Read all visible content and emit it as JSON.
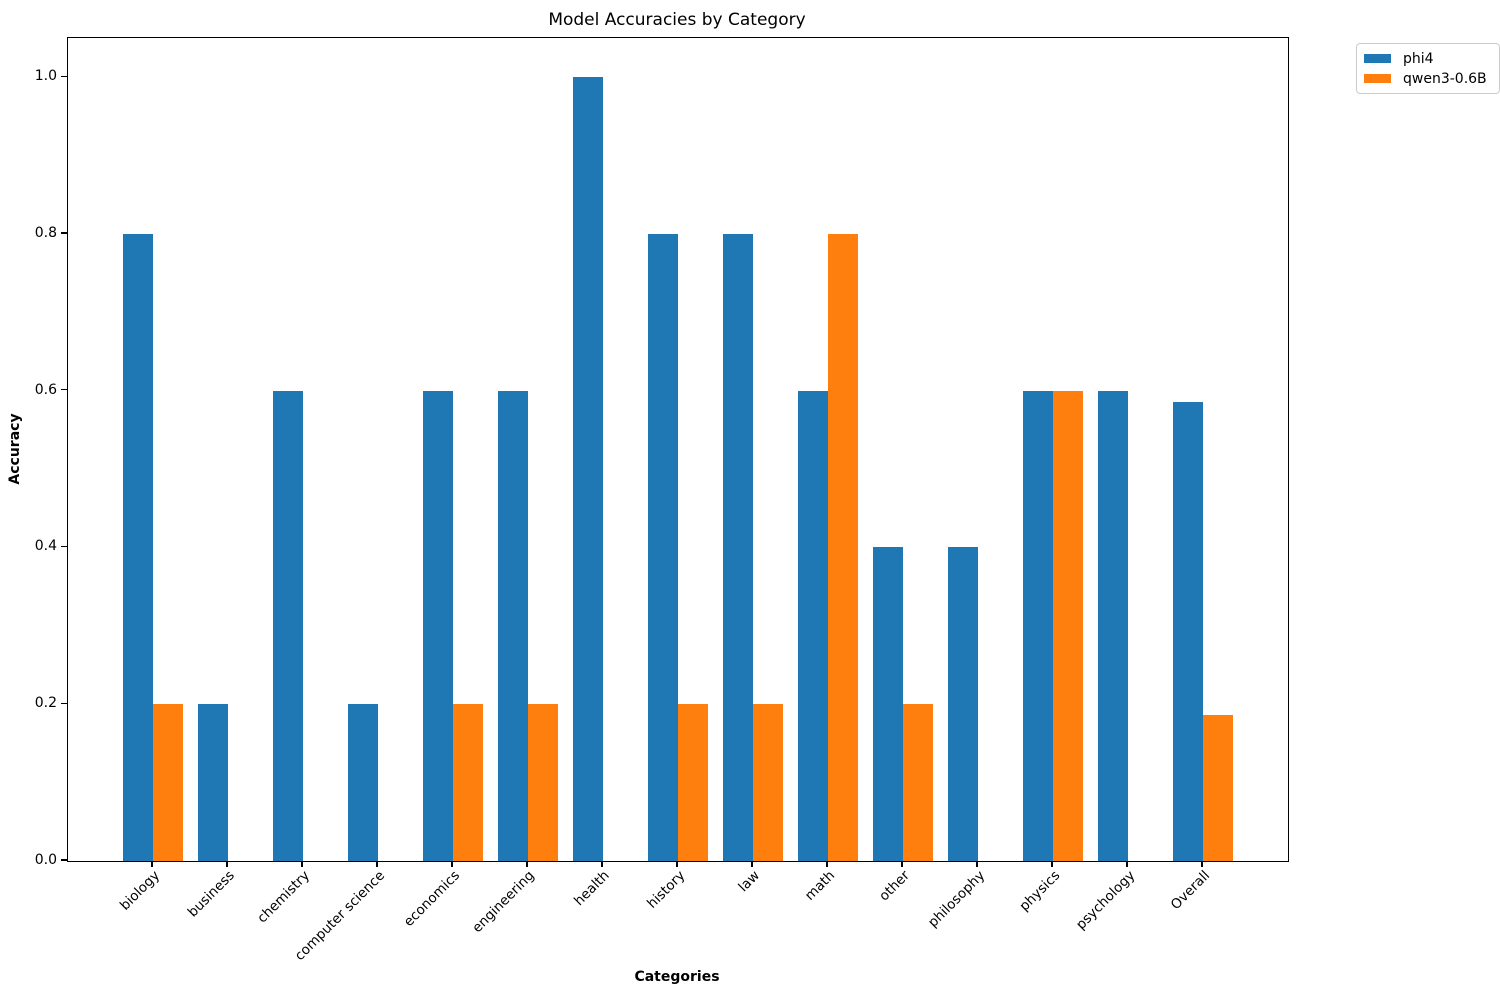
{
  "chart_data": {
    "type": "bar",
    "title": "Model Accuracies by Category",
    "xlabel": "Categories",
    "ylabel": "Accuracy",
    "categories": [
      "biology",
      "business",
      "chemistry",
      "computer science",
      "economics",
      "engineering",
      "health",
      "history",
      "law",
      "math",
      "other",
      "philosophy",
      "physics",
      "psychology",
      "Overall"
    ],
    "series": [
      {
        "name": "phi4",
        "color": "#1f77b4",
        "values": [
          0.8,
          0.2,
          0.6,
          0.2,
          0.6,
          0.6,
          1.0,
          0.8,
          0.8,
          0.6,
          0.4,
          0.4,
          0.6,
          0.6,
          0.5857
        ]
      },
      {
        "name": "qwen3-0.6B",
        "color": "#ff7f0e",
        "values": [
          0.2,
          0.0,
          0.0,
          0.0,
          0.2,
          0.2,
          0.0,
          0.2,
          0.2,
          0.8,
          0.2,
          0.0,
          0.6,
          0.0,
          0.1857
        ]
      }
    ],
    "ylim": [
      0,
      1.05
    ],
    "yticks": [
      0.0,
      0.2,
      0.4,
      0.6,
      0.8,
      1.0
    ],
    "ytick_labels": [
      "0.0",
      "0.2",
      "0.4",
      "0.6",
      "0.8",
      "1.0"
    ],
    "bar_width_fraction": 0.4,
    "grid": false,
    "legend_position": "outside-upper-right",
    "x_tick_label_rotation_deg": 45
  }
}
